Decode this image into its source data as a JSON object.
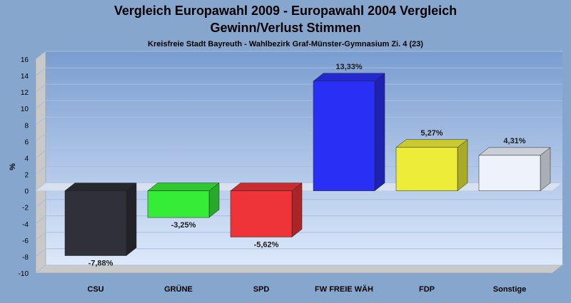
{
  "colors": {
    "page_bg": "#87a6ce",
    "plot_bg_top": "#7a9dd0",
    "plot_bg_bottom": "#dde9fb",
    "wall": "#c9c9c9",
    "grid": "#a9bde0"
  },
  "chart_data": {
    "type": "bar",
    "title": "Vergleich Europawahl 2009 - Europawahl 2004 Vergleich",
    "title_line2": "Gewinn/Verlust Stimmen",
    "subtitle": "Kreisfreie Stadt Bayreuth - Wahlbezirk Graf-Münster-Gymnasium Zi. 4 (23)",
    "ylabel": "%",
    "xlabel": "",
    "ylim": [
      -10,
      16
    ],
    "yticks": [
      16,
      14,
      12,
      10,
      8,
      6,
      4,
      2,
      0,
      -2,
      -4,
      -6,
      -8,
      -10
    ],
    "grid": true,
    "legend": "none",
    "three_d": true,
    "categories": [
      "CSU",
      "GRÜNE",
      "SPD",
      "FW FREIE WÄH",
      "FDP",
      "Sonstige"
    ],
    "values": [
      -7.88,
      -3.25,
      -5.62,
      13.33,
      5.27,
      4.31
    ],
    "value_labels": [
      "-7,88%",
      "-3,25%",
      "-5,62%",
      "13,33%",
      "5,27%",
      "4,31%"
    ],
    "bar_colors": [
      "#2f3039",
      "#35ec36",
      "#ee3438",
      "#2a2ff6",
      "#ecec39",
      "#eef2fb"
    ]
  }
}
